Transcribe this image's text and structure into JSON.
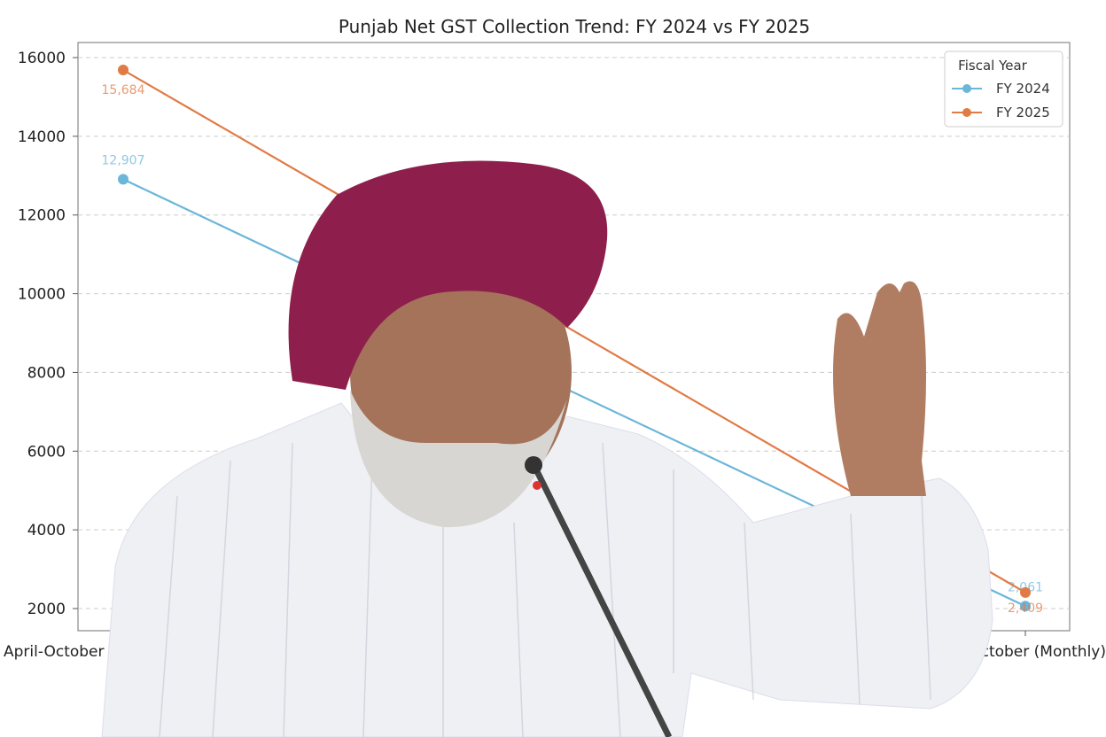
{
  "chart_data": {
    "type": "line",
    "title": "Punjab Net GST Collection Trend: FY 2024 vs FY 2025",
    "xlabel": "",
    "ylabel": "",
    "categories": [
      "April-October",
      "October (Monthly)"
    ],
    "ylim": [
      1700,
      16400
    ],
    "yticks": [
      2000,
      4000,
      6000,
      8000,
      10000,
      12000,
      14000,
      16000
    ],
    "grid": "horizontal dashed",
    "legend": {
      "title": "Fiscal Year",
      "placement": "top-right"
    },
    "series": [
      {
        "name": "FY 2024",
        "color": "#6bb6d9",
        "values": [
          12907,
          2061
        ],
        "labels": [
          "12,907",
          "2,061"
        ]
      },
      {
        "name": "FY 2025",
        "color": "#e07b45",
        "values": [
          15684,
          2409
        ],
        "labels": [
          "15,684",
          "2,409"
        ]
      }
    ]
  },
  "overlay": {
    "description_icon": "person-photo"
  }
}
